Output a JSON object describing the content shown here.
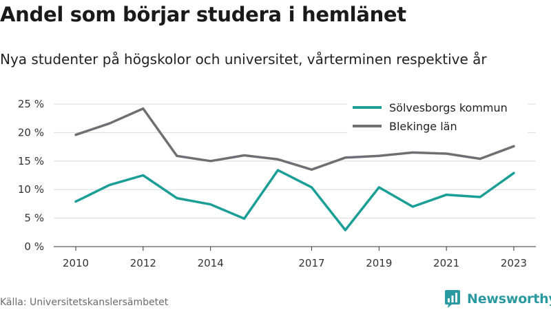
{
  "chart_data": {
    "type": "line",
    "title": "Andel som börjar studera i hemlänet",
    "subtitle": "Nya studenter på högskolor och universitet, vårterminen respektive år",
    "x": [
      2010,
      2011,
      2012,
      2013,
      2014,
      2015,
      2016,
      2017,
      2018,
      2019,
      2020,
      2021,
      2022,
      2023
    ],
    "x_tick_labels": [
      "2010",
      "2012",
      "2014",
      "2017",
      "2019",
      "2021",
      "2023"
    ],
    "y_ticks": [
      0,
      5,
      10,
      15,
      20,
      25
    ],
    "y_tick_labels": [
      "0 %",
      "5 %",
      "10 %",
      "15 %",
      "20 %",
      "25 %"
    ],
    "ylim": [
      0,
      25
    ],
    "grid": true,
    "legend_position": "top-right",
    "series": [
      {
        "name": "Sölvesborgs kommun",
        "color": "#1a9e96",
        "values": [
          7.9,
          10.8,
          12.5,
          8.5,
          7.4,
          4.9,
          13.4,
          10.4,
          2.9,
          10.4,
          7.0,
          9.1,
          8.7,
          12.9
        ]
      },
      {
        "name": "Blekinge län",
        "color": "#6e6e73",
        "values": [
          19.6,
          21.6,
          24.2,
          15.9,
          15.0,
          16.0,
          15.3,
          13.5,
          15.6,
          15.9,
          16.5,
          16.3,
          15.4,
          17.6
        ]
      }
    ]
  },
  "source": "Källa: Universitetskanslersämbetet",
  "logo": {
    "text": "Newsworthy",
    "color": "#2b9aa0"
  }
}
